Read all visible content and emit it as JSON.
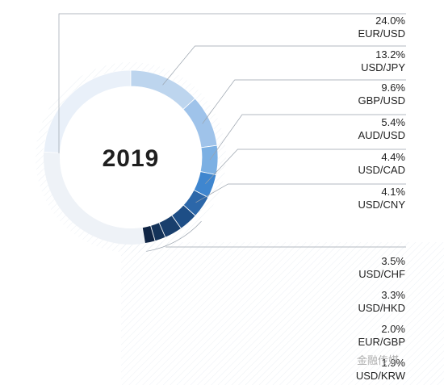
{
  "chart_data": {
    "type": "pie",
    "title": "2019",
    "categories": [
      "EUR/USD",
      "USD/JPY",
      "GBP/USD",
      "AUD/USD",
      "USD/CAD",
      "USD/CNY",
      "USD/CHF",
      "USD/HKD",
      "EUR/GBP",
      "USD/KRW"
    ],
    "values": [
      24.0,
      13.2,
      9.6,
      5.4,
      4.4,
      4.1,
      3.5,
      3.3,
      2.0,
      1.9
    ],
    "labels": [
      "24.0%",
      "13.2%",
      "9.6%",
      "5.4%",
      "4.4%",
      "4.1%",
      "3.5%",
      "3.3%",
      "2.0%",
      "1.9%"
    ],
    "colors": [
      "#e9f0f9",
      "#bdd5ee",
      "#9fc3ea",
      "#7cb0e3",
      "#3f86cf",
      "#2c67a9",
      "#1e4e86",
      "#193f6d",
      "#143359",
      "#0f2545"
    ]
  },
  "watermark": "金融传媒"
}
